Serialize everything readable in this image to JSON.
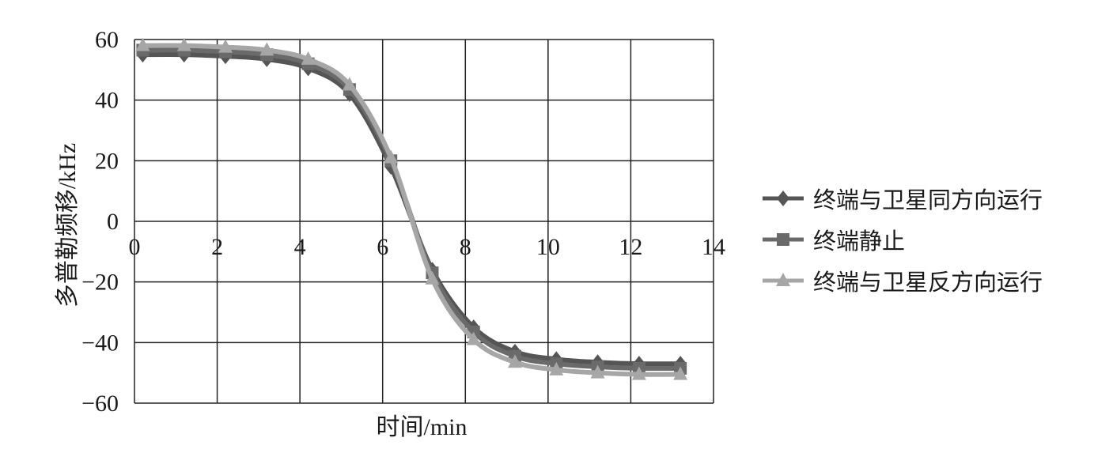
{
  "chart_data": {
    "type": "line",
    "title": "",
    "xlabel": "时间/min",
    "ylabel": "多普勒频移/kHz",
    "xlim": [
      0,
      14
    ],
    "ylim": [
      -60,
      60
    ],
    "xticks": [
      "0",
      "2",
      "4",
      "6",
      "8",
      "10",
      "12",
      "14"
    ],
    "yticks": [
      "60",
      "40",
      "20",
      "0",
      "−20",
      "−40",
      "−60"
    ],
    "grid": true,
    "legend_position": "right",
    "x": [
      0.2,
      1.2,
      2.2,
      3.2,
      4.2,
      5.2,
      6.2,
      7.2,
      8.2,
      9.2,
      10.2,
      11.2,
      12.2,
      13.2
    ],
    "series": [
      {
        "name": "终端与卫星同方向运行",
        "marker": "diamond",
        "color": "#555555",
        "values": [
          55,
          55,
          54.5,
          53.5,
          50.5,
          42,
          18,
          -16,
          -35,
          -43,
          -45.5,
          -46.5,
          -47,
          -47
        ]
      },
      {
        "name": "终端静止",
        "marker": "square",
        "color": "#6a6a6a",
        "values": [
          56.5,
          56.5,
          56,
          55,
          52,
          43.5,
          20,
          -17,
          -36.5,
          -44.5,
          -47,
          -48,
          -48.5,
          -48.5
        ]
      },
      {
        "name": "终端与卫星反方向运行",
        "marker": "triangle",
        "color": "#a6a6a6",
        "values": [
          58,
          58,
          57.5,
          56.5,
          53.5,
          45,
          21,
          -19,
          -39,
          -46.5,
          -49,
          -50,
          -50.5,
          -50.5
        ]
      }
    ]
  }
}
